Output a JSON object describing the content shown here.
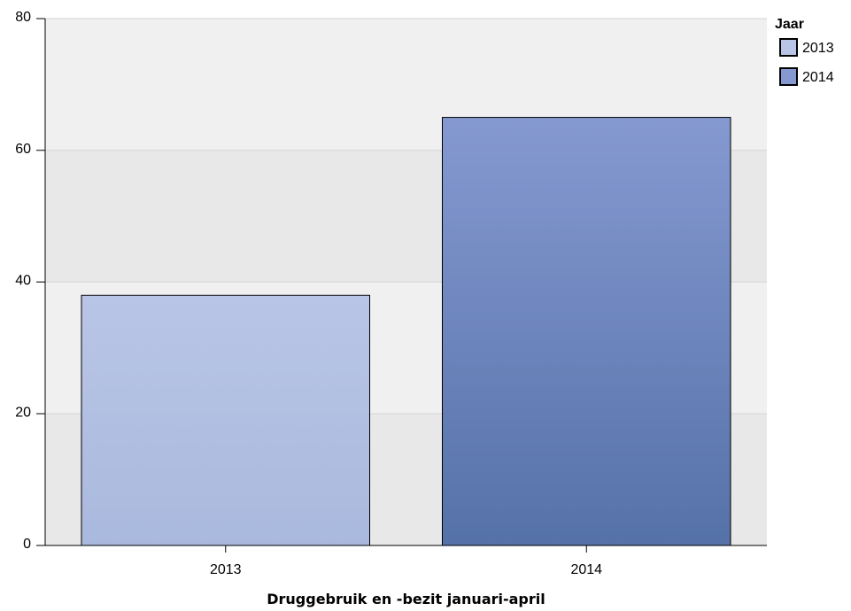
{
  "chart_data": {
    "type": "bar",
    "categories": [
      "2013",
      "2014"
    ],
    "values": [
      38,
      65
    ],
    "colors": {
      "2013": {
        "top": "#b9c5e6",
        "bottom": "#a9b9dd"
      },
      "2014": {
        "top": "#8599d0",
        "bottom": "#5572a8"
      }
    },
    "xlabel": "Druggebruik en -bezit januari-april",
    "ylabel": "",
    "ylim": [
      0,
      80
    ],
    "yticks": [
      "0",
      "20",
      "40",
      "60",
      "80"
    ],
    "grid": true,
    "band_colors": [
      "#e8e8e8",
      "#f0f0f0"
    ],
    "legend": {
      "title": "Jaar",
      "position": "top-right",
      "items": [
        "2013",
        "2014"
      ]
    }
  }
}
